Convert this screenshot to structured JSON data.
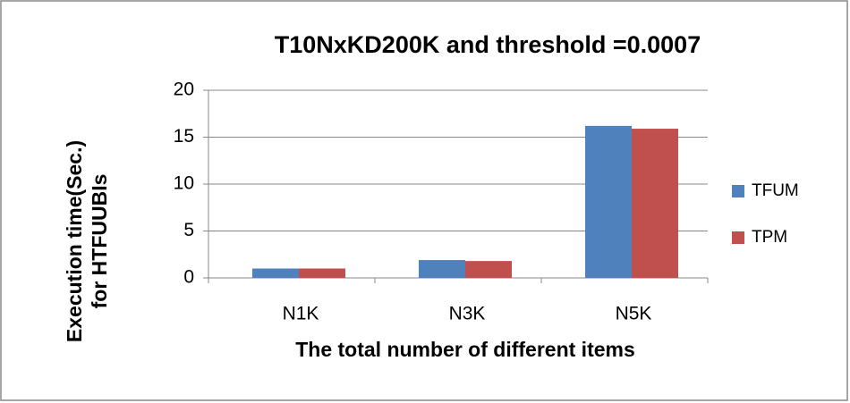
{
  "chart_data": {
    "type": "bar",
    "title": "T10NxKD200K and threshold =0.0007",
    "x_label": "The total number of different items",
    "y_label": [
      "Execution time(Sec.)",
      "for HTFUUBIs"
    ],
    "categories": [
      "N1K",
      "N3K",
      "N5K"
    ],
    "series": [
      {
        "name": "TFUM",
        "color": "#4f81bd",
        "values": [
          1.0,
          1.9,
          16.2
        ]
      },
      {
        "name": "TPM",
        "color": "#c0504d",
        "values": [
          1.0,
          1.8,
          15.9
        ]
      }
    ],
    "ylim": [
      0,
      20
    ],
    "yticks": [
      0,
      5,
      10,
      15,
      20
    ],
    "grid": true,
    "legend": "right"
  }
}
